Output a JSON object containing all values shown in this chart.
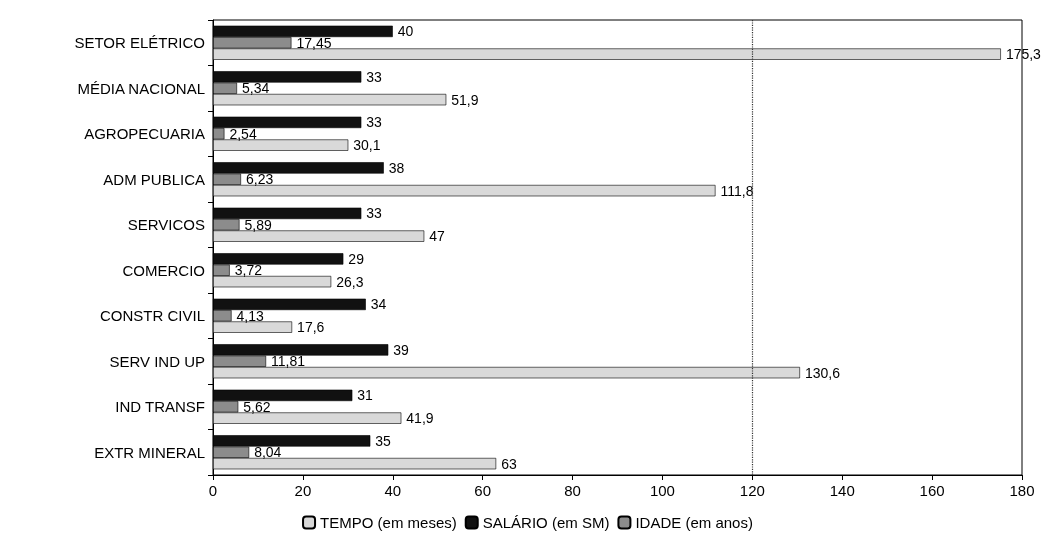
{
  "chart_data": {
    "type": "bar",
    "orientation": "horizontal",
    "categories": [
      "SETOR ELÉTRICO",
      "MÉDIA NACIONAL",
      "AGROPECUARIA",
      "ADM PUBLICA",
      "SERVICOS",
      "COMERCIO",
      "CONSTR CIVIL",
      "SERV IND UP",
      "IND TRANSF",
      "EXTR MINERAL"
    ],
    "series": [
      {
        "name": "SALÁRIO (em SM)",
        "color": "#111111",
        "values": [
          40,
          33,
          33,
          38,
          33,
          29,
          34,
          39,
          31,
          35
        ],
        "value_labels": [
          "40",
          "33",
          "33",
          "38",
          "33",
          "29",
          "34",
          "39",
          "31",
          "35"
        ]
      },
      {
        "name": "IDADE (em anos)",
        "color": "#8c8c8c",
        "values": [
          17.45,
          5.34,
          2.54,
          6.23,
          5.89,
          3.72,
          4.13,
          11.81,
          5.62,
          8.04
        ],
        "value_labels": [
          "17,45",
          "5,34",
          "2,54",
          "6,23",
          "5,89",
          "3,72",
          "4,13",
          "11,81",
          "5,62",
          "8,04"
        ]
      },
      {
        "name": "TEMPO (em meses)",
        "color": "#d9d9d9",
        "values": [
          175.3,
          51.9,
          30.1,
          111.8,
          47,
          26.3,
          17.6,
          130.6,
          41.9,
          63
        ],
        "value_labels": [
          "175,3",
          "51,9",
          "30,1",
          "111,8",
          "47",
          "26,3",
          "17,6",
          "130,6",
          "41,9",
          "63"
        ]
      }
    ],
    "xlim": [
      0,
      180
    ],
    "xticks": [
      0,
      20,
      40,
      60,
      80,
      100,
      120,
      140,
      160,
      180
    ],
    "ref_lines": [
      {
        "axis": "x",
        "value": 120,
        "line_style": "dotted",
        "color": "#333333"
      }
    ],
    "grid": false,
    "legend": "bottom"
  }
}
